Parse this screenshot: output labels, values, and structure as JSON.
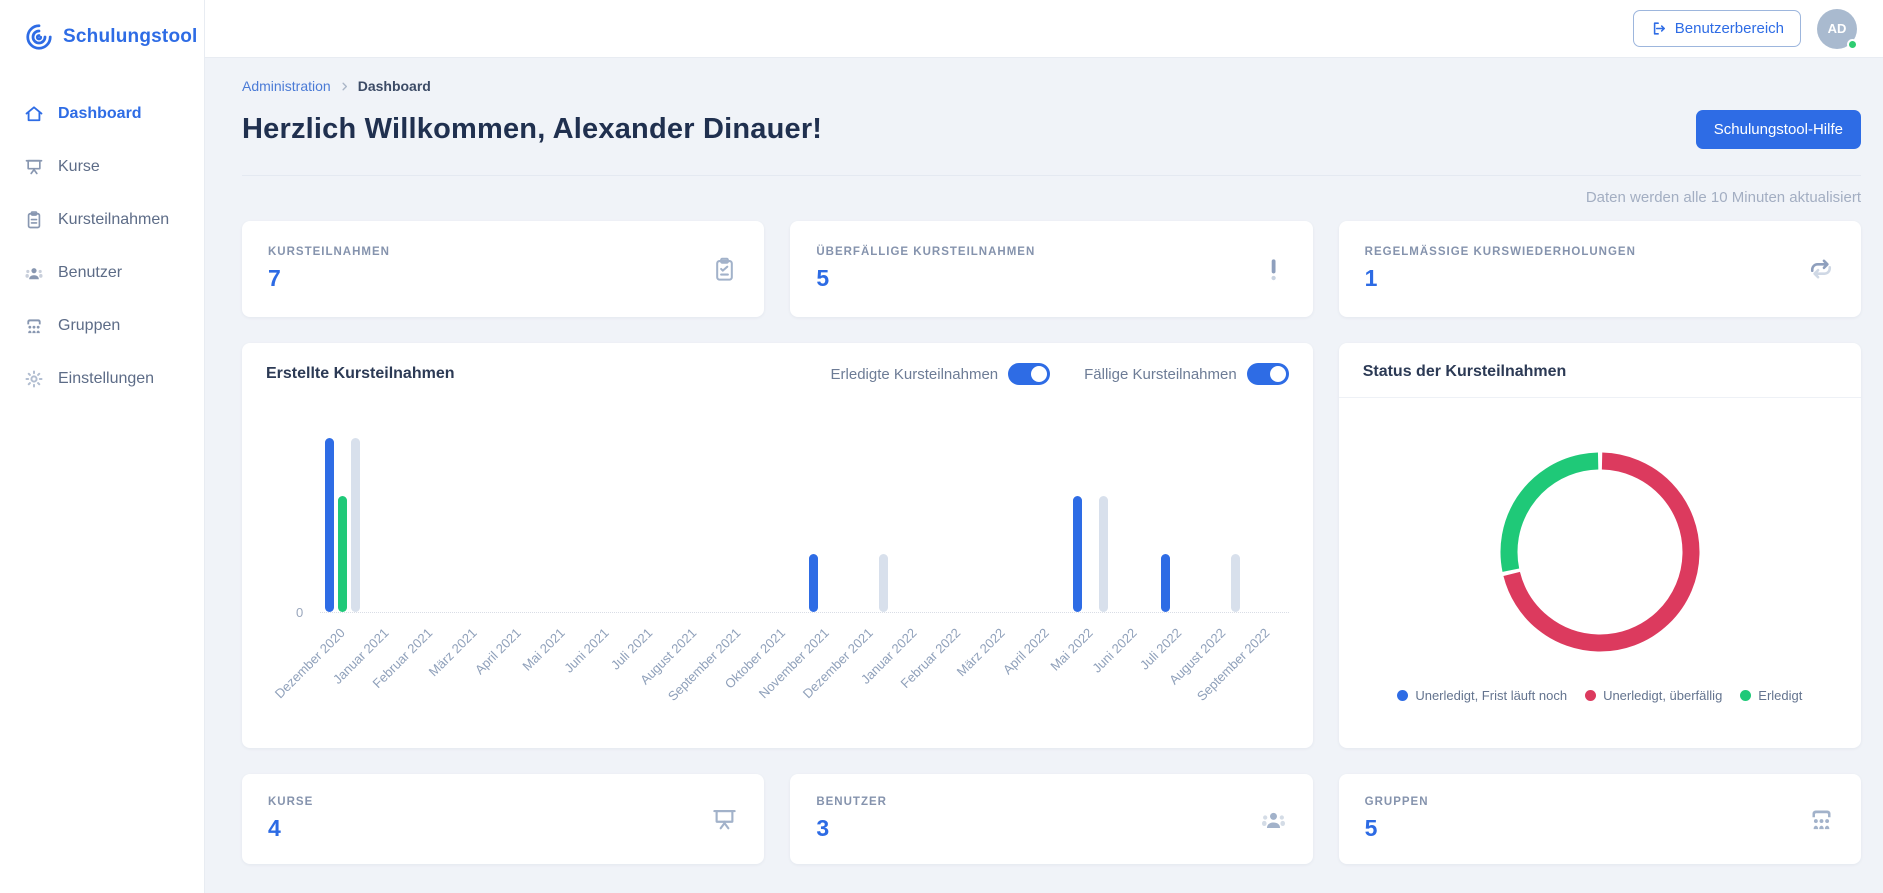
{
  "colors": {
    "accent_blue": "#2e6ce5",
    "green": "#1fc978",
    "red": "#dc3a5e",
    "bar_gray": "#d8e0ec",
    "page_bg": "#f0f3f8",
    "online_dot": "#2ecc71"
  },
  "app": {
    "name": "Schulungstool"
  },
  "sidebar": {
    "items": [
      {
        "label": "Dashboard",
        "icon": "home-icon",
        "active": true
      },
      {
        "label": "Kurse",
        "icon": "presentation-icon",
        "active": false
      },
      {
        "label": "Kursteilnahmen",
        "icon": "clipboard-icon",
        "active": false
      },
      {
        "label": "Benutzer",
        "icon": "users-icon",
        "active": false
      },
      {
        "label": "Gruppen",
        "icon": "group-icon",
        "active": false
      },
      {
        "label": "Einstellungen",
        "icon": "gear-icon",
        "active": false
      }
    ]
  },
  "topbar": {
    "user_area_button": "Benutzerbereich",
    "avatar_initials": "AD",
    "online_status": "online"
  },
  "breadcrumb": {
    "parent": "Administration",
    "current": "Dashboard"
  },
  "page": {
    "title": "Herzlich Willkommen, Alexander Dinauer!",
    "help_button": "Schulungstool-Hilfe",
    "refresh_note": "Daten werden alle 10 Minuten aktualisiert"
  },
  "stats_top": [
    {
      "label": "KURSTEILNAHMEN",
      "value": "7",
      "icon": "clipboard-check-icon"
    },
    {
      "label": "ÜBERFÄLLIGE KURSTEILNAHMEN",
      "value": "5",
      "icon": "exclamation-icon"
    },
    {
      "label": "REGELMÄSSIGE KURSWIEDERHOLUNGEN",
      "value": "1",
      "icon": "repeat-icon"
    }
  ],
  "stats_bottom": [
    {
      "label": "KURSE",
      "value": "4",
      "icon": "presentation-icon"
    },
    {
      "label": "BENUTZER",
      "value": "3",
      "icon": "users-icon"
    },
    {
      "label": "GRUPPEN",
      "value": "5",
      "icon": "group-icon"
    }
  ],
  "bar_card": {
    "title": "Erstellte Kursteilnahmen",
    "toggles": [
      {
        "label": "Erledigte Kursteilnahmen",
        "on": true
      },
      {
        "label": "Fällige Kursteilnahmen",
        "on": true
      }
    ],
    "y_zero_label": "0"
  },
  "donut_card": {
    "title": "Status der Kursteilnahmen"
  },
  "chart_data": [
    {
      "type": "bar",
      "title": "Erstellte Kursteilnahmen",
      "categories": [
        "Dezember 2020",
        "Januar 2021",
        "Februar 2021",
        "März 2021",
        "April 2021",
        "Mai 2021",
        "Juni 2021",
        "Juli 2021",
        "August 2021",
        "September 2021",
        "Oktober 2021",
        "November 2021",
        "Dezember 2021",
        "Januar 2022",
        "Februar 2022",
        "März 2022",
        "April 2022",
        "Mai 2022",
        "Juni 2022",
        "Juli 2022",
        "August 2022",
        "September 2022"
      ],
      "series": [
        {
          "name": "Erstellte Kursteilnahmen",
          "color": "#2e6ce5",
          "values": [
            3,
            0,
            0,
            0,
            0,
            0,
            0,
            0,
            0,
            0,
            0,
            1,
            0,
            0,
            0,
            0,
            0,
            2,
            0,
            1,
            0,
            0
          ]
        },
        {
          "name": "Erledigte Kursteilnahmen",
          "color": "#1fc978",
          "values": [
            2,
            0,
            0,
            0,
            0,
            0,
            0,
            0,
            0,
            0,
            0,
            0,
            0,
            0,
            0,
            0,
            0,
            0,
            0,
            0,
            0,
            0
          ]
        },
        {
          "name": "Fällige Kursteilnahmen",
          "color": "#d8e0ec",
          "values": [
            3,
            0,
            0,
            0,
            0,
            0,
            0,
            0,
            0,
            0,
            0,
            0,
            1,
            0,
            0,
            0,
            0,
            2,
            0,
            0,
            1,
            0
          ]
        }
      ],
      "ylim": [
        0,
        3.2
      ],
      "y_tick_labels": [
        "0"
      ],
      "grid": "baseline-dotted",
      "x_labels_rotated_deg": -45
    },
    {
      "type": "pie",
      "variant": "donut",
      "title": "Status der Kursteilnahmen",
      "labels": [
        "Unerledigt, Frist läuft noch",
        "Unerledigt, überfällig",
        "Erledigt"
      ],
      "values": [
        0,
        5,
        2
      ],
      "colors": [
        "#2e6ce5",
        "#dc3a5e",
        "#1fc978"
      ],
      "legend_position": "bottom"
    }
  ]
}
